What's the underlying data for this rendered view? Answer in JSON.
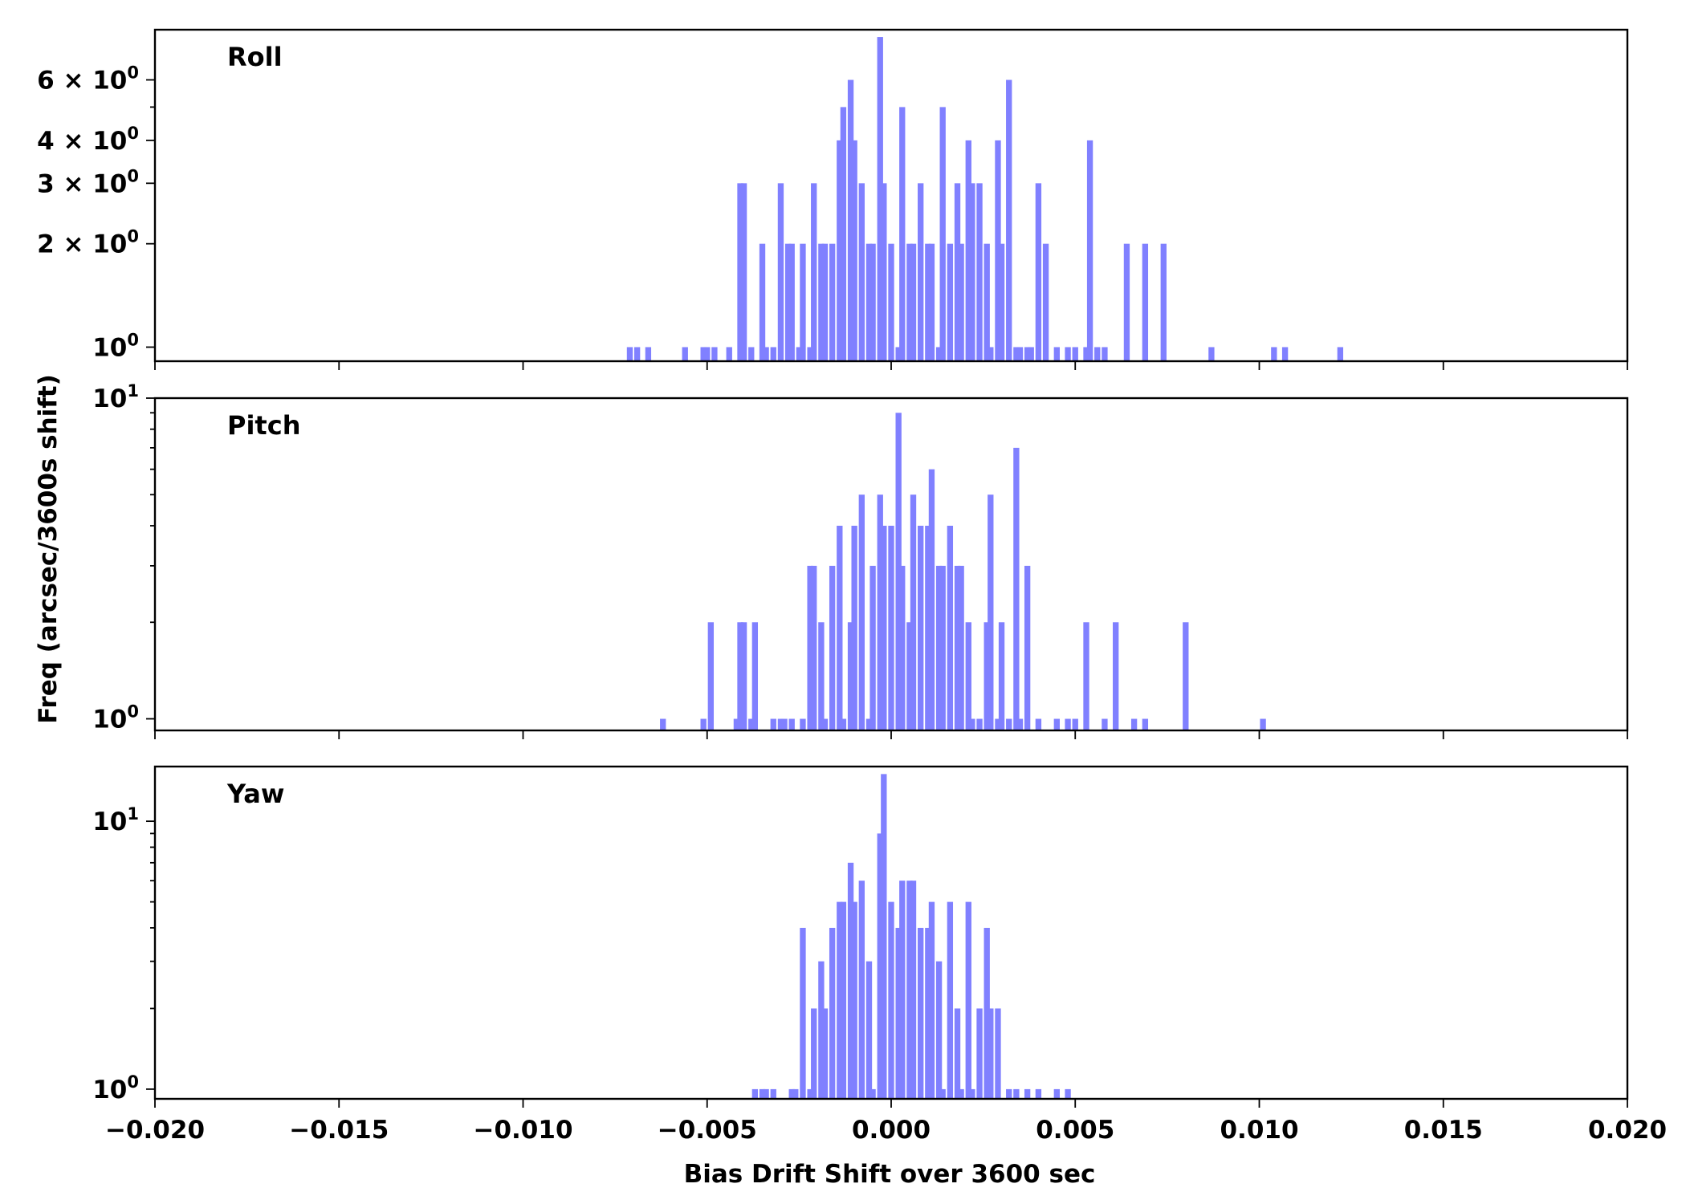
{
  "chart_data": {
    "type": "bar",
    "layout": "three stacked panels sharing the x axis",
    "xlabel": "Bias Drift Shift over 3600 sec",
    "ylabel": "Freq (arcsec/3600s shift)",
    "xlim": [
      -0.02,
      0.02
    ],
    "x_tick_labels": [
      "−0.020",
      "−0.015",
      "−0.010",
      "−0.005",
      "0.000",
      "0.005",
      "0.010",
      "0.015",
      "0.020"
    ],
    "x_ticks": [
      -0.02,
      -0.015,
      -0.01,
      -0.005,
      0,
      0.005,
      0.01,
      0.015,
      0.02
    ],
    "y_scale": "log",
    "bin_width": 0.00016,
    "bar_color": "#8080ff",
    "panels": [
      {
        "label": "Roll",
        "ylim": [
          0.91,
          8.4
        ],
        "y_tick_labels": [
          {
            "value": 1,
            "base": "10",
            "exp": "0",
            "mantissa": ""
          },
          {
            "value": 2,
            "base": "10",
            "exp": "0",
            "mantissa": "2 × "
          },
          {
            "value": 3,
            "base": "10",
            "exp": "0",
            "mantissa": "3 × "
          },
          {
            "value": 4,
            "base": "10",
            "exp": "0",
            "mantissa": "4 × "
          },
          {
            "value": 6,
            "base": "10",
            "exp": "0",
            "mantissa": "6 × "
          }
        ],
        "minor_ticks": [
          5
        ],
        "bins": [
          [
            -0.0071,
            1
          ],
          [
            -0.0069,
            1
          ],
          [
            -0.0066,
            1
          ],
          [
            -0.0056,
            1
          ],
          [
            -0.0051,
            1
          ],
          [
            -0.005,
            1
          ],
          [
            -0.0048,
            1
          ],
          [
            -0.0044,
            1
          ],
          [
            -0.0041,
            3
          ],
          [
            -0.004,
            3
          ],
          [
            -0.0038,
            1
          ],
          [
            -0.0035,
            2
          ],
          [
            -0.0034,
            1
          ],
          [
            -0.0032,
            1
          ],
          [
            -0.003,
            3
          ],
          [
            -0.0028,
            2
          ],
          [
            -0.0027,
            2
          ],
          [
            -0.0025,
            1
          ],
          [
            -0.0024,
            2
          ],
          [
            -0.0022,
            1
          ],
          [
            -0.0021,
            3
          ],
          [
            -0.0019,
            2
          ],
          [
            -0.0018,
            2
          ],
          [
            -0.0016,
            2
          ],
          [
            -0.0014,
            4
          ],
          [
            -0.0013,
            5
          ],
          [
            -0.0011,
            6
          ],
          [
            -0.001,
            4
          ],
          [
            -0.0008,
            3
          ],
          [
            -0.0006,
            2
          ],
          [
            -0.0005,
            2
          ],
          [
            -0.0003,
            8
          ],
          [
            -0.0002,
            3
          ],
          [
            0.0,
            2
          ],
          [
            0.0002,
            1
          ],
          [
            0.0003,
            5
          ],
          [
            0.0005,
            2
          ],
          [
            0.0006,
            2
          ],
          [
            0.0008,
            3
          ],
          [
            0.001,
            2
          ],
          [
            0.0011,
            2
          ],
          [
            0.0013,
            1
          ],
          [
            0.0014,
            5
          ],
          [
            0.0016,
            2
          ],
          [
            0.0018,
            3
          ],
          [
            0.0019,
            2
          ],
          [
            0.0021,
            4
          ],
          [
            0.0022,
            3
          ],
          [
            0.0024,
            3
          ],
          [
            0.0026,
            2
          ],
          [
            0.0027,
            1
          ],
          [
            0.0029,
            4
          ],
          [
            0.003,
            2
          ],
          [
            0.0032,
            6
          ],
          [
            0.0034,
            1
          ],
          [
            0.0035,
            1
          ],
          [
            0.0037,
            1
          ],
          [
            0.0038,
            1
          ],
          [
            0.004,
            3
          ],
          [
            0.0042,
            2
          ],
          [
            0.0045,
            1
          ],
          [
            0.0048,
            1
          ],
          [
            0.005,
            1
          ],
          [
            0.0053,
            1
          ],
          [
            0.0054,
            4
          ],
          [
            0.0056,
            1
          ],
          [
            0.0058,
            1
          ],
          [
            0.0064,
            2
          ],
          [
            0.0069,
            2
          ],
          [
            0.0074,
            2
          ],
          [
            0.0087,
            1
          ],
          [
            0.0104,
            1
          ],
          [
            0.0107,
            1
          ],
          [
            0.0122,
            1
          ]
        ]
      },
      {
        "label": "Pitch",
        "ylim": [
          0.92,
          10.0
        ],
        "y_tick_labels": [
          {
            "value": 1,
            "base": "10",
            "exp": "0",
            "mantissa": ""
          },
          {
            "value": 10,
            "base": "10",
            "exp": "1",
            "mantissa": ""
          }
        ],
        "minor_ticks": [
          2,
          3,
          4,
          5,
          6,
          7,
          8,
          9
        ],
        "bins": [
          [
            -0.0062,
            1
          ],
          [
            -0.0051,
            1
          ],
          [
            -0.0049,
            2
          ],
          [
            -0.0042,
            1
          ],
          [
            -0.0041,
            2
          ],
          [
            -0.004,
            2
          ],
          [
            -0.0038,
            1
          ],
          [
            -0.0037,
            2
          ],
          [
            -0.0032,
            1
          ],
          [
            -0.003,
            1
          ],
          [
            -0.0029,
            1
          ],
          [
            -0.0027,
            1
          ],
          [
            -0.0024,
            1
          ],
          [
            -0.0022,
            3
          ],
          [
            -0.0021,
            3
          ],
          [
            -0.0019,
            2
          ],
          [
            -0.0018,
            1
          ],
          [
            -0.0016,
            3
          ],
          [
            -0.0014,
            4
          ],
          [
            -0.0013,
            1
          ],
          [
            -0.0011,
            2
          ],
          [
            -0.001,
            4
          ],
          [
            -0.0008,
            5
          ],
          [
            -0.0006,
            1
          ],
          [
            -0.0005,
            3
          ],
          [
            -0.0003,
            5
          ],
          [
            -0.0002,
            4
          ],
          [
            0.0,
            4
          ],
          [
            0.0002,
            9
          ],
          [
            0.0003,
            3
          ],
          [
            0.0005,
            2
          ],
          [
            0.0006,
            5
          ],
          [
            0.0008,
            4
          ],
          [
            0.001,
            4
          ],
          [
            0.0011,
            6
          ],
          [
            0.0013,
            3
          ],
          [
            0.0014,
            3
          ],
          [
            0.0016,
            4
          ],
          [
            0.0018,
            3
          ],
          [
            0.0019,
            3
          ],
          [
            0.0021,
            2
          ],
          [
            0.0022,
            1
          ],
          [
            0.0024,
            1
          ],
          [
            0.0026,
            2
          ],
          [
            0.0027,
            5
          ],
          [
            0.0029,
            1
          ],
          [
            0.003,
            2
          ],
          [
            0.0032,
            1
          ],
          [
            0.0034,
            7
          ],
          [
            0.0035,
            1
          ],
          [
            0.0037,
            3
          ],
          [
            0.004,
            1
          ],
          [
            0.0045,
            1
          ],
          [
            0.0048,
            1
          ],
          [
            0.005,
            1
          ],
          [
            0.0053,
            2
          ],
          [
            0.0058,
            1
          ],
          [
            0.0061,
            2
          ],
          [
            0.0066,
            1
          ],
          [
            0.0069,
            1
          ],
          [
            0.008,
            2
          ],
          [
            0.0101,
            1
          ]
        ]
      },
      {
        "label": "Yaw",
        "ylim": [
          0.92,
          16.0
        ],
        "y_tick_labels": [
          {
            "value": 1,
            "base": "10",
            "exp": "0",
            "mantissa": ""
          },
          {
            "value": 10,
            "base": "10",
            "exp": "1",
            "mantissa": ""
          }
        ],
        "minor_ticks": [
          2,
          3,
          4,
          5,
          6,
          7,
          8,
          9
        ],
        "bins": [
          [
            -0.0037,
            1
          ],
          [
            -0.0035,
            1
          ],
          [
            -0.0034,
            1
          ],
          [
            -0.0032,
            1
          ],
          [
            -0.0027,
            1
          ],
          [
            -0.0026,
            1
          ],
          [
            -0.0024,
            4
          ],
          [
            -0.0022,
            1
          ],
          [
            -0.0021,
            2
          ],
          [
            -0.0019,
            3
          ],
          [
            -0.0018,
            2
          ],
          [
            -0.0016,
            4
          ],
          [
            -0.0014,
            5
          ],
          [
            -0.0013,
            5
          ],
          [
            -0.0011,
            7
          ],
          [
            -0.001,
            5
          ],
          [
            -0.0008,
            6
          ],
          [
            -0.0006,
            3
          ],
          [
            -0.0005,
            1
          ],
          [
            -0.0003,
            9
          ],
          [
            -0.0002,
            15
          ],
          [
            0.0,
            5
          ],
          [
            0.0002,
            4
          ],
          [
            0.0003,
            6
          ],
          [
            0.0005,
            6
          ],
          [
            0.0006,
            6
          ],
          [
            0.0008,
            4
          ],
          [
            0.001,
            4
          ],
          [
            0.0011,
            5
          ],
          [
            0.0013,
            3
          ],
          [
            0.0014,
            1
          ],
          [
            0.0016,
            5
          ],
          [
            0.0018,
            2
          ],
          [
            0.0019,
            1
          ],
          [
            0.0021,
            5
          ],
          [
            0.0022,
            1
          ],
          [
            0.0024,
            2
          ],
          [
            0.0026,
            4
          ],
          [
            0.0027,
            2
          ],
          [
            0.0029,
            2
          ],
          [
            0.0032,
            1
          ],
          [
            0.0034,
            1
          ],
          [
            0.0037,
            1
          ],
          [
            0.004,
            1
          ],
          [
            0.0045,
            1
          ],
          [
            0.0048,
            1
          ]
        ]
      }
    ]
  }
}
